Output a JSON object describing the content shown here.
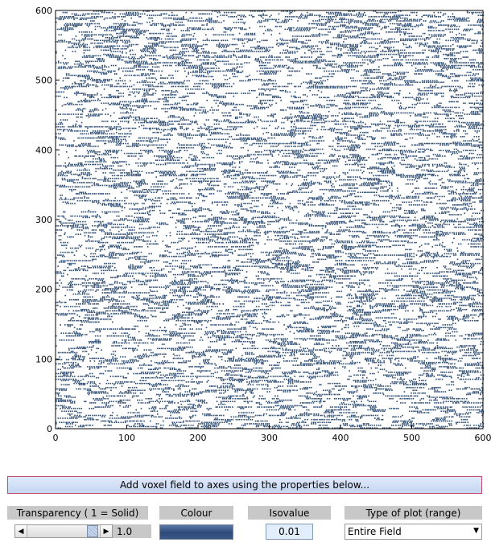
{
  "chart_data": {
    "type": "scatter",
    "description_style": "dense voxel field, horizontal streaks",
    "point_color": "#2b4a70",
    "xlim": [
      0,
      600
    ],
    "ylim": [
      0,
      600
    ],
    "xticks": [
      0,
      100,
      200,
      300,
      400,
      500,
      600
    ],
    "yticks": [
      0,
      100,
      200,
      300,
      400,
      500,
      600
    ],
    "xtick_labels": [
      "0",
      "100",
      "200",
      "300",
      "400",
      "500",
      "600"
    ],
    "ytick_labels": [
      "0",
      "100",
      "200",
      "300",
      "400",
      "500",
      "600"
    ],
    "grid": false,
    "title": "",
    "xlabel": "",
    "ylabel": ""
  },
  "controls": {
    "add_button_label": "Add voxel field to axes using the properties below...",
    "transparency": {
      "label": "Transparency ( 1 = Solid)",
      "value_text": "1.0",
      "slider_fraction": 0.9
    },
    "colour": {
      "label": "Colour",
      "swatch_color": "#2d4a7a"
    },
    "isovalue": {
      "label": "Isovalue",
      "value": "0.01"
    },
    "plot_type": {
      "label": "Type of plot (range)",
      "selected": "Entire Field"
    },
    "icons": {
      "slider_left": "left-arrow-icon",
      "slider_right": "right-arrow-icon",
      "dropdown": "chevron-down-icon"
    }
  }
}
